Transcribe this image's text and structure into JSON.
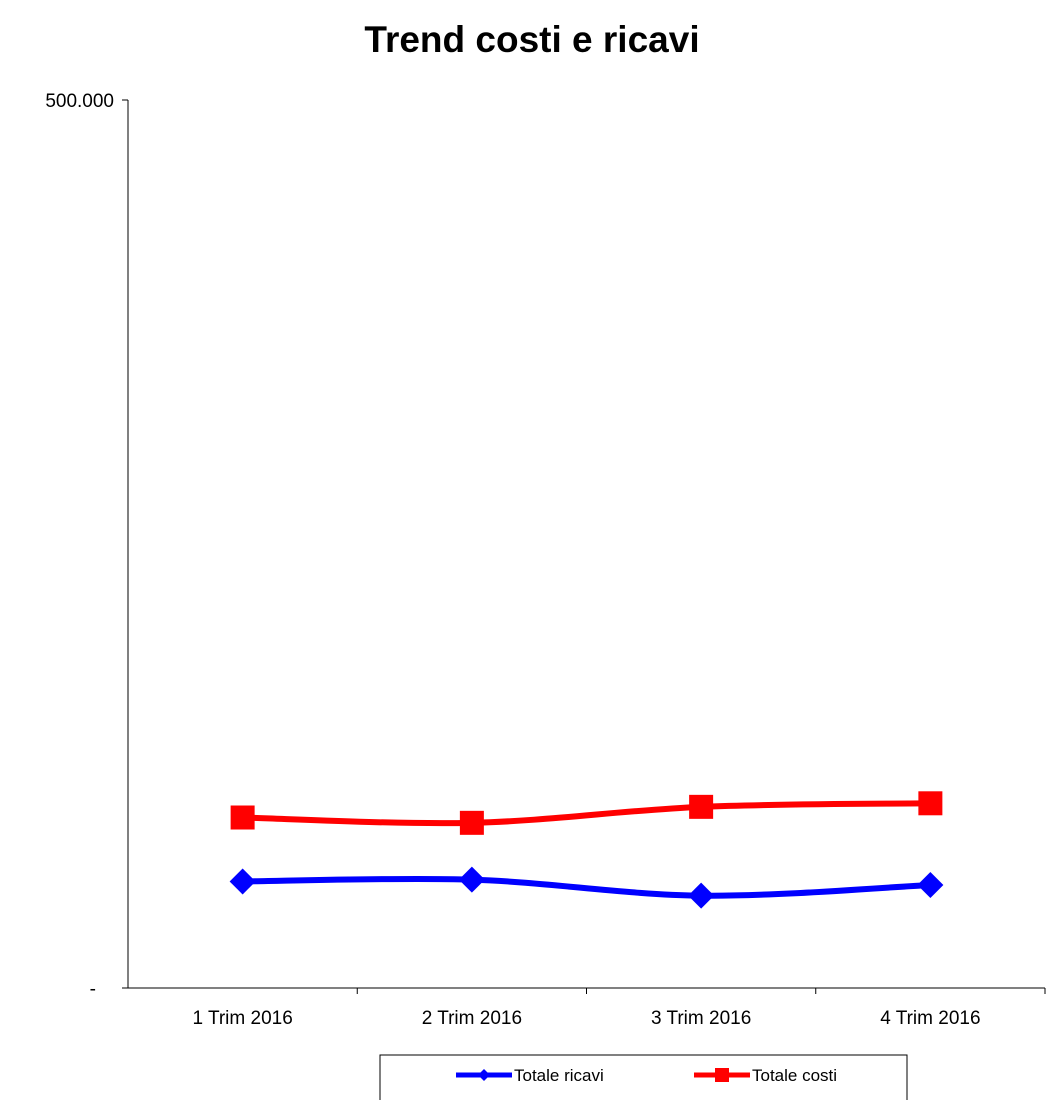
{
  "chart_data": {
    "type": "line",
    "title": "Trend costi e ricavi",
    "xlabel": "",
    "ylabel": "",
    "categories": [
      "1 Trim 2016",
      "2 Trim 2016",
      "3 Trim 2016",
      "4 Trim 2016"
    ],
    "ylim": [
      0,
      500000
    ],
    "y_tick_labels": [
      "-",
      "500.000"
    ],
    "grid": false,
    "legend_position": "bottom",
    "series": [
      {
        "name": "Totale ricavi",
        "color": "#0000FF",
        "marker": "diamond",
        "values": [
          60000,
          61000,
          52000,
          58000
        ]
      },
      {
        "name": "Totale costi",
        "color": "#FF0000",
        "marker": "square",
        "values": [
          96000,
          93000,
          102000,
          104000
        ]
      }
    ]
  }
}
